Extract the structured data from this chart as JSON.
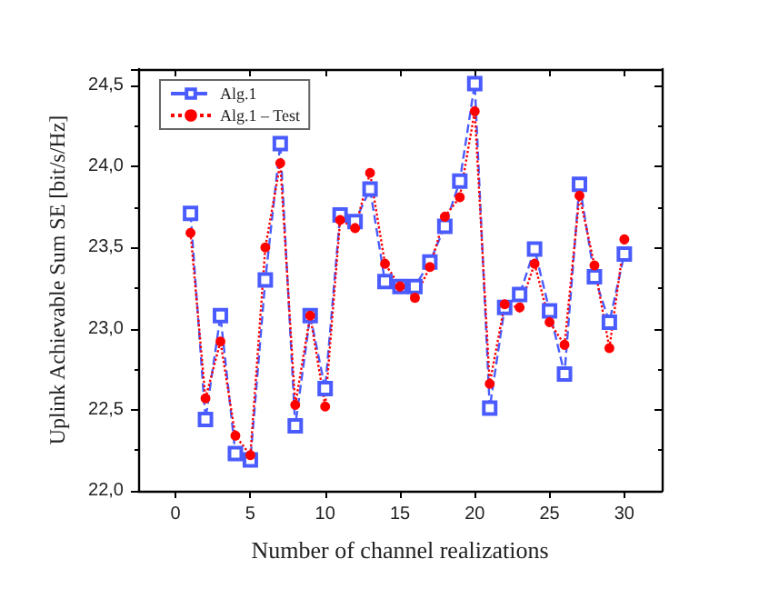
{
  "chart_data": {
    "type": "line",
    "xlabel": "Number of channel realizations",
    "ylabel": "Uplink Achievable Sum SE [bit/s/Hz]",
    "x": [
      1,
      2,
      3,
      4,
      5,
      6,
      7,
      8,
      9,
      10,
      11,
      12,
      13,
      14,
      15,
      16,
      17,
      18,
      19,
      20,
      21,
      22,
      23,
      24,
      25,
      26,
      27,
      28,
      29,
      30
    ],
    "series": [
      {
        "name": "Alg.1",
        "color": "#4a5cff",
        "marker": "square",
        "line_style": "dashed",
        "values": [
          23.71,
          22.44,
          23.08,
          22.23,
          22.19,
          23.3,
          24.14,
          22.4,
          23.08,
          22.63,
          23.7,
          23.66,
          23.86,
          23.29,
          23.26,
          23.26,
          23.41,
          23.63,
          23.91,
          24.51,
          22.51,
          23.13,
          23.21,
          23.49,
          23.11,
          22.72,
          23.89,
          23.32,
          23.04,
          23.46
        ]
      },
      {
        "name": "Alg.1 – Test",
        "color": "#ff0000",
        "marker": "circle",
        "line_style": "dotted",
        "values": [
          23.59,
          22.57,
          22.92,
          22.34,
          22.22,
          23.5,
          24.02,
          22.53,
          23.08,
          22.52,
          23.67,
          23.62,
          23.96,
          23.4,
          23.26,
          23.19,
          23.38,
          23.69,
          23.81,
          24.34,
          22.66,
          23.15,
          23.13,
          23.4,
          23.04,
          22.9,
          23.82,
          23.39,
          22.88,
          23.55
        ]
      }
    ],
    "xlim": [
      -2.5,
      32.5
    ],
    "xticks": [
      0,
      5,
      10,
      15,
      20,
      25,
      30
    ],
    "ylim": [
      22,
      24.6
    ],
    "yticks": [
      {
        "value": 22,
        "label": "22,0"
      },
      {
        "value": 22.5,
        "label": "22,5"
      },
      {
        "value": 23,
        "label": "23,0"
      },
      {
        "value": 23.5,
        "label": "23,5"
      },
      {
        "value": 24,
        "label": "24,0"
      },
      {
        "value": 24.5,
        "label": "24,5"
      }
    ],
    "grid": false,
    "legend": "top left"
  }
}
